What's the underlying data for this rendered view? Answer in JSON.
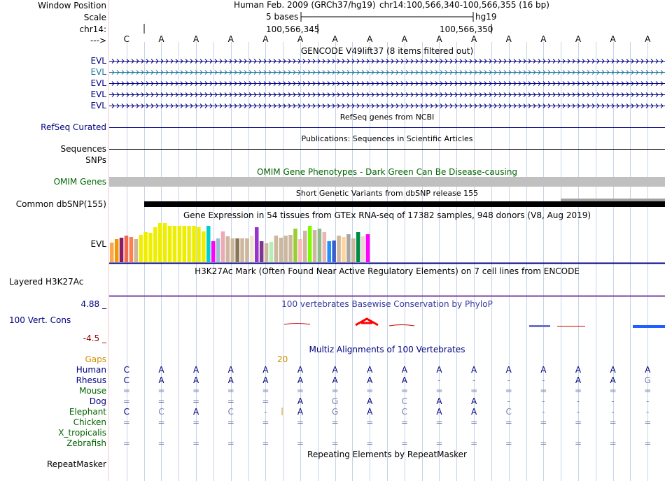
{
  "header": {
    "position_label": "Window Position",
    "scale_label": "Scale",
    "chrom_label": "chr14:",
    "arrow_label": "--->",
    "assembly": "Human Feb. 2009 (GRCh37/hg19)",
    "position": "chr14:100,566,340-100,566,355 (16 bp)",
    "scale_text": "5 bases",
    "db": "hg19",
    "coord1": "100,566,345",
    "coord2": "100,566,350"
  },
  "bases": [
    "C",
    "A",
    "A",
    "A",
    "A",
    "A",
    "A",
    "A",
    "A",
    "A",
    "A",
    "A",
    "A",
    "A",
    "A",
    "A"
  ],
  "tracks": {
    "gencode": {
      "title": "GENCODE V49lift37 (8 items filtered out)",
      "rows": [
        "EVL",
        "EVL",
        "EVL",
        "EVL",
        "EVL"
      ]
    },
    "refseq": {
      "title": "RefSeq genes from NCBI",
      "label": "RefSeq Curated"
    },
    "pubs": {
      "title": "Publications: Sequences in Scientific Articles",
      "label_seq": "Sequences",
      "label_snps": "SNPs"
    },
    "omim": {
      "title": "OMIM Gene Phenotypes - Dark Green Can Be Disease-causing",
      "label": "OMIM Genes"
    },
    "dbsnp": {
      "title": "Short Genetic Variants from dbSNP release 155",
      "label": "Common dbSNP(155)"
    },
    "gtex": {
      "title": "Gene Expression in 54 tissues from GTEx RNA-seq of 17382 samples, 948 donors (V8, Aug 2019)",
      "label": "EVL",
      "values": [
        28,
        33,
        35,
        38,
        36,
        33,
        39,
        43,
        42,
        50,
        56,
        56,
        52,
        52,
        52,
        52,
        52,
        52,
        50,
        44,
        52,
        30,
        34,
        44,
        37,
        34,
        34,
        34,
        34,
        38,
        50,
        30,
        27,
        29,
        38,
        35,
        38,
        39,
        48,
        33,
        45,
        52,
        46,
        48,
        43,
        30,
        31,
        38,
        36,
        40,
        34,
        43,
        37,
        40
      ],
      "colors": [
        "#FFA54F",
        "#EE9A00",
        "#8B1C62",
        "#EE6A50",
        "#FF7F50",
        "#CDB79E",
        "#EEEE00",
        "#EEEE00",
        "#EEEE00",
        "#EEEE00",
        "#EEEE00",
        "#EEEE00",
        "#EEEE00",
        "#EEEE00",
        "#EEEE00",
        "#EEEE00",
        "#EEEE00",
        "#EEEE00",
        "#EEEE00",
        "#EEEE00",
        "#00CDCD",
        "#FF00FF",
        "#9AC0CD",
        "#EEA9B8",
        "#CDB79E",
        "#CDB79E",
        "#8B7355",
        "#CDB79E",
        "#CDB79E",
        "#EEE8CD",
        "#9A32CD",
        "#7A378B",
        "#CDB79E",
        "#B4EEB4",
        "#CDB79E",
        "#CDB79E",
        "#CDB79E",
        "#CDB79E",
        "#9ACD32",
        "#FFB6C1",
        "#CDB79E",
        "#7CFC00",
        "#CDB79E",
        "#8FBC8F",
        "#EEB4B4",
        "#1E90FF",
        "#3A5FCD",
        "#CDB79E",
        "#FFD39B",
        "#A6A6A6",
        "#CDB79E",
        "#008B45",
        "#EED5D2",
        "#FF00FF"
      ]
    },
    "h3k27ac": {
      "title": "H3K27Ac Mark (Often Found Near Active Regulatory Elements) on 7 cell lines from ENCODE",
      "label": "Layered H3K27Ac"
    },
    "cons": {
      "title": "100 vertebrates Basewise Conservation by PhyloP",
      "label": "100 Vert. Cons",
      "max": "4.88 _",
      "min": "-4.5 _"
    },
    "multiz": {
      "title": "Multiz Alignments of 100 Vertebrates",
      "gaps_label": "Gaps",
      "gap_value": "20",
      "species": [
        {
          "name": "Human",
          "color": "#000080",
          "row": [
            "C",
            "A",
            "A",
            "A",
            "A",
            "A",
            "A",
            "A",
            "A",
            "A",
            "A",
            "A",
            "A",
            "A",
            "A",
            "A"
          ]
        },
        {
          "name": "Rhesus",
          "color": "#000080",
          "row": [
            "C",
            "A",
            "A",
            "A",
            "A",
            "A",
            "A",
            "A",
            "A",
            "-",
            "-",
            "-",
            "-",
            "A",
            "A",
            "G"
          ]
        },
        {
          "name": "Mouse",
          "color": "#006400",
          "row": [
            "=",
            "=",
            "=",
            "=",
            "=",
            "=",
            "=",
            "=",
            "=",
            "=",
            "=",
            "=",
            "=",
            "=",
            "=",
            "="
          ]
        },
        {
          "name": "Dog",
          "color": "#000080",
          "row": [
            "=",
            "=",
            "=",
            "=",
            "=",
            "A",
            "G",
            "A",
            "C",
            "A",
            "A",
            "-",
            "-",
            "-",
            "-",
            "-"
          ]
        },
        {
          "name": "Elephant",
          "color": "#006400",
          "row": [
            "C",
            "C",
            "A",
            "C",
            "-",
            "A",
            "G",
            "A",
            "C",
            "A",
            "A",
            "C",
            "-",
            "-",
            "-",
            "-"
          ]
        },
        {
          "name": "Chicken",
          "color": "#006400",
          "row": [
            "=",
            "=",
            "=",
            "=",
            "=",
            "=",
            "=",
            "=",
            "=",
            "=",
            "=",
            "=",
            "=",
            "=",
            "=",
            "="
          ]
        },
        {
          "name": "X_tropicalis",
          "color": "#006400",
          "row": [
            "",
            "",
            "",
            "",
            "",
            "",
            "",
            "",
            "",
            "",
            "",
            "",
            "",
            "",
            "",
            ""
          ]
        },
        {
          "name": "Zebrafish",
          "color": "#006400",
          "row": [
            "=",
            "=",
            "=",
            "=",
            "=",
            "=",
            "=",
            "=",
            "=",
            "=",
            "=",
            "=",
            "=",
            "=",
            "=",
            "="
          ]
        }
      ]
    },
    "rmsk": {
      "title": "Repeating Elements by RepeatMasker",
      "label": "RepeatMasker"
    }
  },
  "colors": {
    "navy": "#000080",
    "green": "#006400",
    "teal": "#1f78a0",
    "orange": "#d18f00",
    "grid": "#c5d3e8"
  }
}
